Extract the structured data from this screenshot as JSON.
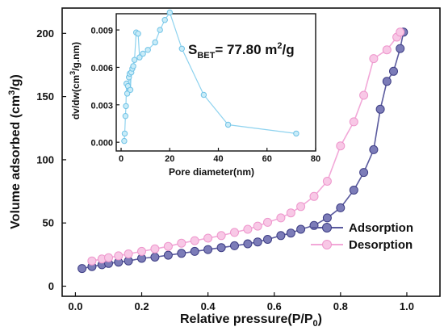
{
  "chart_data": [
    {
      "type": "line",
      "xlabel": "Relative pressure(P/P",
      "xlabel_sub": "0",
      "xlabel_end": ")",
      "ylabel": "Volume adsorbed (cm",
      "ylabel_sup": "3",
      "ylabel_end": "/g)",
      "xlim": [
        -0.04,
        1.1
      ],
      "ylim": [
        -8,
        220
      ],
      "xticks": [
        "0.0",
        "0.2",
        "0.4",
        "0.6",
        "0.8",
        "1.0"
      ],
      "xtick_values": [
        0,
        0.2,
        0.4,
        0.6,
        0.8,
        1.0
      ],
      "yticks": [
        "0",
        "50",
        "100",
        "150",
        "200"
      ],
      "ytick_values": [
        0,
        50,
        100,
        150,
        200
      ],
      "legend_position": "bottom-right",
      "series": [
        {
          "name": "Adsorption",
          "color": "#5a5a9e",
          "x": [
            0.02,
            0.05,
            0.08,
            0.1,
            0.13,
            0.16,
            0.2,
            0.24,
            0.28,
            0.32,
            0.36,
            0.4,
            0.44,
            0.48,
            0.52,
            0.55,
            0.58,
            0.62,
            0.65,
            0.68,
            0.72,
            0.76,
            0.8,
            0.84,
            0.87,
            0.9,
            0.92,
            0.94,
            0.96,
            0.98,
            0.99
          ],
          "y": [
            14,
            15.5,
            17,
            18,
            19,
            20,
            22,
            23,
            24.5,
            26,
            27.5,
            29,
            30.5,
            32,
            33.5,
            35,
            37,
            40,
            42,
            45,
            48,
            54,
            62,
            76,
            90,
            108,
            140,
            162,
            170,
            188,
            201
          ]
        },
        {
          "name": "Desorption",
          "color": "#f2a8d8",
          "x": [
            0.05,
            0.08,
            0.1,
            0.13,
            0.16,
            0.2,
            0.24,
            0.28,
            0.32,
            0.36,
            0.4,
            0.44,
            0.48,
            0.52,
            0.55,
            0.58,
            0.62,
            0.65,
            0.68,
            0.72,
            0.76,
            0.8,
            0.84,
            0.87,
            0.9,
            0.94,
            0.97,
            0.98
          ],
          "y": [
            20,
            21.5,
            22.5,
            24,
            25.5,
            27.5,
            29.5,
            31.5,
            34,
            36,
            38,
            40,
            42.5,
            45,
            47.5,
            50.5,
            54,
            58,
            63,
            71,
            83,
            111,
            130,
            151,
            180,
            187,
            197,
            201
          ]
        }
      ]
    },
    {
      "type": "line",
      "xlabel": "Pore diameter(nm)",
      "ylabel": "dv/dw(cm",
      "ylabel_sup": "3",
      "ylabel_end": "/g.nm)",
      "xlim": [
        -2,
        80
      ],
      "ylim": [
        -0.0007,
        0.0103
      ],
      "xticks": [
        "0",
        "20",
        "40",
        "60",
        "80"
      ],
      "xtick_values": [
        0,
        20,
        40,
        60,
        80
      ],
      "yticks": [
        "0.000",
        "0.003",
        "0.006",
        "0.009"
      ],
      "ytick_values": [
        0,
        0.003,
        0.006,
        0.009
      ],
      "annotation": {
        "prefix": "S",
        "sub": "BET",
        "value": "= 77.80 m",
        "sup": "2",
        "end": "/g"
      },
      "series": [
        {
          "name": "",
          "color": "#8fd3ef",
          "x": [
            1.3,
            1.5,
            1.8,
            2.0,
            2.2,
            2.5,
            2.8,
            3.2,
            3.5,
            3.8,
            4.2,
            4.6,
            5.0,
            5.5,
            6.2,
            7.0,
            7.6,
            9.0,
            11.0,
            14.0,
            16.0,
            18.0,
            20.0,
            25.0,
            34.0,
            44.0,
            72.0
          ],
          "y": [
            0.0001,
            0.0007,
            0.0021,
            0.0029,
            0.0047,
            0.0039,
            0.0045,
            0.0052,
            0.0055,
            0.0042,
            0.0056,
            0.0059,
            0.0061,
            0.0066,
            0.0088,
            0.0087,
            0.0068,
            0.0071,
            0.0074,
            0.008,
            0.009,
            0.0098,
            0.0104,
            0.0075,
            0.0038,
            0.0014,
            0.0007
          ]
        }
      ]
    }
  ]
}
